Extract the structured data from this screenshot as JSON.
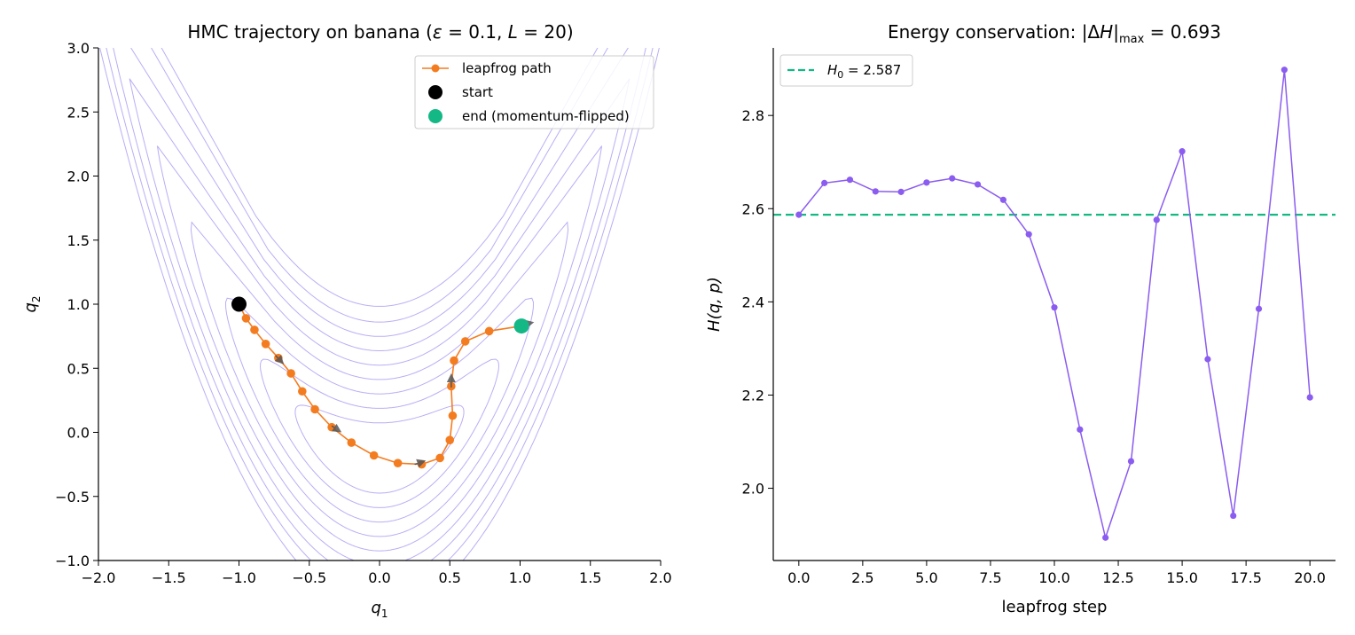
{
  "figure": {
    "colors": {
      "path": "#f47c20",
      "start": "#000000",
      "end": "#14b885",
      "contour": "#b4a4f4",
      "energy": "#8b5cf0",
      "reference": "#14b885",
      "arrow": "#555555"
    }
  },
  "chart_data": [
    {
      "type": "line",
      "title": "HMC trajectory on banana (ε = 0.1, L = 20)",
      "title_parts": [
        "HMC trajectory on banana (",
        "ε",
        " = 0.1, ",
        "L",
        " = 20)"
      ],
      "xlabel": "q",
      "xlabel_sub": "1",
      "ylabel": "q",
      "ylabel_sub": "2",
      "xlim": [
        -2.0,
        2.0
      ],
      "ylim": [
        -1.0,
        3.0
      ],
      "xticks": [
        -2.0,
        -1.5,
        -1.0,
        -0.5,
        0.0,
        0.5,
        1.0,
        1.5,
        2.0
      ],
      "xtick_labels": [
        "−2.0",
        "−1.5",
        "−1.0",
        "−0.5",
        "0.0",
        "0.5",
        "1.0",
        "1.5",
        "2.0"
      ],
      "yticks": [
        -1.0,
        -0.5,
        0.0,
        0.5,
        1.0,
        1.5,
        2.0,
        2.5,
        3.0
      ],
      "ytick_labels": [
        "−1.0",
        "−0.5",
        "0.0",
        "0.5",
        "1.0",
        "1.5",
        "2.0",
        "2.5",
        "3.0"
      ],
      "grid": false,
      "legend_position": "top-right",
      "legend": [
        "leapfrog path",
        "start",
        "end (momentum-flipped)"
      ],
      "contour": {
        "function": "banana: curved valley along q2 ≈ q1² − 0.2",
        "valley_min": [
          0.0,
          -0.2
        ],
        "levels": [
          0.3,
          0.6,
          1.0,
          1.5,
          2.1,
          2.8,
          3.6,
          4.5,
          5.6
        ],
        "valley_x": [
          -1.12,
          -1.1,
          -1.0,
          -0.9,
          -0.8,
          -0.7,
          -0.6,
          -0.5,
          -0.4,
          -0.3,
          -0.2,
          -0.1,
          0.0,
          0.1,
          0.2,
          0.3,
          0.4,
          0.5,
          0.6,
          0.7,
          0.8,
          0.9,
          1.0,
          1.1,
          1.2,
          1.3,
          1.4,
          1.5,
          1.6,
          1.7,
          1.8
        ],
        "valley_y": [
          1.05,
          1.01,
          0.8,
          0.61,
          0.44,
          0.29,
          0.16,
          0.05,
          -0.04,
          -0.11,
          -0.16,
          -0.19,
          -0.2,
          -0.19,
          -0.16,
          -0.11,
          -0.04,
          0.05,
          0.16,
          0.29,
          0.44,
          0.61,
          0.8,
          1.01,
          1.24,
          1.49,
          1.76,
          2.05,
          2.36,
          2.69,
          3.04
        ]
      },
      "path": {
        "q1": [
          -1.0,
          -0.95,
          -0.89,
          -0.81,
          -0.72,
          -0.63,
          -0.55,
          -0.46,
          -0.34,
          -0.2,
          -0.04,
          0.13,
          0.3,
          0.43,
          0.5,
          0.52,
          0.51,
          0.53,
          0.61,
          0.78,
          1.01
        ],
        "q2": [
          1.0,
          0.89,
          0.8,
          0.69,
          0.58,
          0.46,
          0.32,
          0.18,
          0.04,
          -0.08,
          -0.18,
          -0.24,
          -0.25,
          -0.2,
          -0.06,
          0.13,
          0.36,
          0.56,
          0.71,
          0.79,
          0.83
        ]
      },
      "start": [
        -1.0,
        1.0
      ],
      "end": [
        1.01,
        0.83
      ],
      "momentum_arrows": [
        {
          "from": [
            -0.74,
            0.6
          ],
          "to": [
            -0.68,
            0.53
          ]
        },
        {
          "from": [
            -0.34,
            0.05
          ],
          "to": [
            -0.27,
            0.0
          ]
        },
        {
          "from": [
            0.25,
            -0.25
          ],
          "to": [
            0.33,
            -0.22
          ]
        },
        {
          "from": [
            0.51,
            0.35
          ],
          "to": [
            0.51,
            0.46
          ]
        },
        {
          "from": [
            1.02,
            0.84
          ],
          "to": [
            1.1,
            0.86
          ]
        }
      ]
    },
    {
      "type": "line",
      "title": "Energy conservation: |ΔH|max = 0.693",
      "title_parts": [
        "Energy conservation: |Δ",
        "H",
        "|",
        "max",
        " = 0.693"
      ],
      "xlabel": "leapfrog step",
      "ylabel": "H(q, p)",
      "xlim": [
        -1.0,
        21.0
      ],
      "ylim": [
        1.845,
        2.945
      ],
      "xticks": [
        0.0,
        2.5,
        5.0,
        7.5,
        10.0,
        12.5,
        15.0,
        17.5,
        20.0
      ],
      "xtick_labels": [
        "0.0",
        "2.5",
        "5.0",
        "7.5",
        "10.0",
        "12.5",
        "15.0",
        "17.5",
        "20.0"
      ],
      "yticks": [
        2.0,
        2.2,
        2.4,
        2.6,
        2.8
      ],
      "ytick_labels": [
        "2.0",
        "2.2",
        "2.4",
        "2.6",
        "2.8"
      ],
      "grid": false,
      "legend_position": "top-left",
      "legend": [
        "H0 = 2.587"
      ],
      "legend_parts": [
        "H",
        "0",
        " = 2.587"
      ],
      "reference_line": 2.587,
      "x": [
        0,
        1,
        2,
        3,
        4,
        5,
        6,
        7,
        8,
        9,
        10,
        11,
        12,
        13,
        14,
        15,
        16,
        17,
        18,
        19,
        20
      ],
      "values": [
        2.587,
        2.655,
        2.662,
        2.637,
        2.636,
        2.656,
        2.665,
        2.652,
        2.619,
        2.545,
        2.388,
        2.126,
        1.894,
        2.058,
        2.576,
        2.723,
        2.277,
        1.941,
        2.385,
        2.898,
        2.195
      ]
    }
  ]
}
